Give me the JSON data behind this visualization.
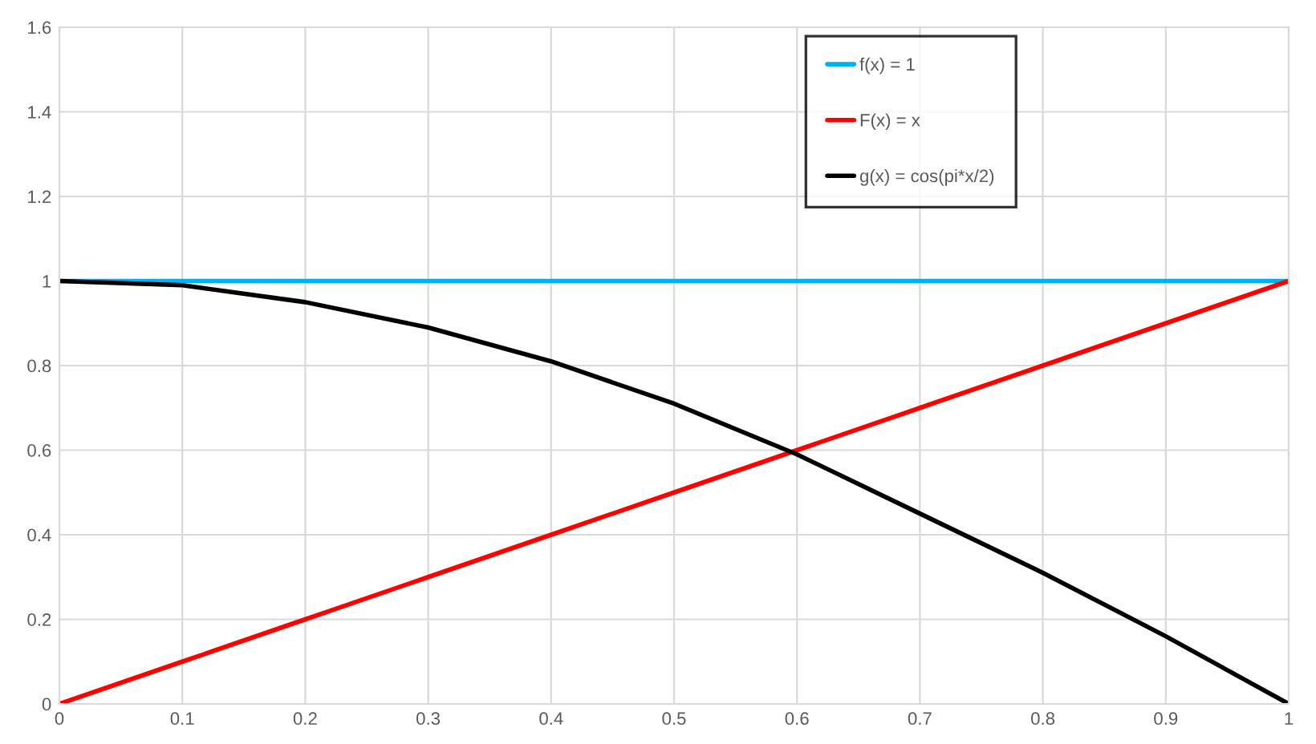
{
  "chart_data": {
    "type": "line",
    "x": [
      0,
      0.1,
      0.2,
      0.3,
      0.4,
      0.5,
      0.6,
      0.7,
      0.8,
      0.9,
      1
    ],
    "series": [
      {
        "name": "f(x) = 1",
        "color": "#00b0f0",
        "values": [
          1,
          1,
          1,
          1,
          1,
          1,
          1,
          1,
          1,
          1,
          1
        ]
      },
      {
        "name": "F(x) = x",
        "color": "#ff0000",
        "values": [
          0,
          0.1,
          0.2,
          0.3,
          0.4,
          0.5,
          0.6,
          0.7,
          0.8,
          0.9,
          1
        ]
      },
      {
        "name": "g(x) = cos(pi*x/2)",
        "color": "#000000",
        "values": [
          1,
          0.99,
          0.95,
          0.89,
          0.81,
          0.71,
          0.59,
          0.45,
          0.31,
          0.16,
          0
        ]
      }
    ],
    "xlim": [
      0,
      1
    ],
    "xticks": [
      0,
      0.1,
      0.2,
      0.3,
      0.4,
      0.5,
      0.6,
      0.7,
      0.8,
      0.9,
      1
    ],
    "ylim": [
      0,
      1.6
    ],
    "yticks": [
      0,
      0.2,
      0.4,
      0.6,
      0.8,
      1,
      1.2,
      1.4,
      1.6
    ],
    "grid": true,
    "legend": "top right",
    "marker": "none",
    "line_style": "solid"
  }
}
